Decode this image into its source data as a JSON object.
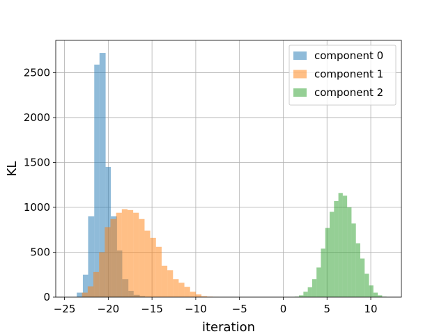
{
  "chart_data": {
    "type": "histogram",
    "xlabel": "iteration",
    "ylabel": "KL",
    "xlim": [
      -26,
      13.5
    ],
    "ylim": [
      0,
      2860
    ],
    "xticks": [
      -25,
      -20,
      -15,
      -10,
      -5,
      0,
      5,
      10
    ],
    "xtick_labels": [
      "−25",
      "−20",
      "−15",
      "−10",
      "−5",
      "0",
      "5",
      "10"
    ],
    "yticks": [
      0,
      500,
      1000,
      1500,
      2000,
      2500
    ],
    "ytick_labels": [
      "0",
      "500",
      "1000",
      "1500",
      "2000",
      "2500"
    ],
    "grid": true,
    "legend_position": "top-right",
    "bar_opacity": 0.5,
    "series": [
      {
        "name": "component 0",
        "color": "#1f77b4",
        "bin_edges": [
          -23.6,
          -22.9,
          -22.3,
          -21.6,
          -21.0,
          -20.3,
          -19.7,
          -19.0,
          -18.4,
          -17.7,
          -17.1,
          -16.4,
          -15.8,
          -15.1
        ],
        "counts": [
          50,
          250,
          900,
          2590,
          2720,
          1450,
          900,
          520,
          200,
          70,
          25,
          10,
          3
        ]
      },
      {
        "name": "component 1",
        "color": "#ff7f0e",
        "bin_edges": [
          -23.0,
          -22.35,
          -21.7,
          -21.05,
          -20.4,
          -19.75,
          -19.1,
          -18.45,
          -17.8,
          -17.15,
          -16.5,
          -15.85,
          -15.2,
          -14.55,
          -13.9,
          -13.25,
          -12.6,
          -11.95,
          -11.3,
          -10.65,
          -10.0,
          -9.35,
          -8.7,
          -8.05,
          -7.4
        ],
        "counts": [
          50,
          120,
          280,
          500,
          780,
          870,
          940,
          980,
          970,
          940,
          870,
          740,
          660,
          560,
          350,
          300,
          200,
          160,
          115,
          60,
          30,
          10,
          5,
          2
        ]
      },
      {
        "name": "component 2",
        "color": "#2ca02c",
        "bin_edges": [
          1.3,
          1.8,
          2.3,
          2.8,
          3.3,
          3.8,
          4.3,
          4.8,
          5.3,
          5.8,
          6.3,
          6.8,
          7.3,
          7.8,
          8.3,
          8.8,
          9.3,
          9.8,
          10.3,
          10.8,
          11.3,
          11.8
        ],
        "counts": [
          5,
          20,
          60,
          110,
          200,
          330,
          540,
          770,
          950,
          1070,
          1160,
          1130,
          1000,
          820,
          600,
          430,
          260,
          130,
          50,
          20,
          5
        ]
      }
    ]
  }
}
